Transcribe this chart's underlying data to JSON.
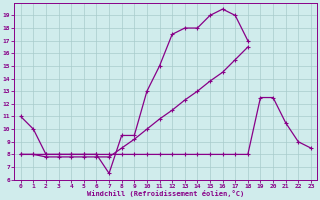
{
  "xlabel": "Windchill (Refroidissement éolien,°C)",
  "line1_x": [
    0,
    1,
    2,
    3,
    4,
    5,
    6,
    7,
    8,
    9,
    10,
    11,
    12,
    13,
    14,
    15,
    16,
    17,
    18
  ],
  "line1_y": [
    11,
    10,
    8,
    8,
    8,
    8,
    8,
    6.5,
    9.5,
    9.5,
    13,
    15,
    17.5,
    18,
    18,
    19,
    19.5,
    19,
    17
  ],
  "line2_x": [
    0,
    1,
    2,
    3,
    4,
    5,
    6,
    7,
    8,
    9,
    10,
    11,
    12,
    13,
    14,
    15,
    16,
    17,
    18
  ],
  "line2_y": [
    8,
    8,
    7.8,
    7.8,
    7.8,
    7.8,
    7.8,
    7.8,
    8.5,
    9.2,
    10,
    10.8,
    11.5,
    12.3,
    13,
    13.8,
    14.5,
    15.5,
    16.5
  ],
  "line3_x": [
    0,
    1,
    2,
    3,
    4,
    5,
    6,
    7,
    8,
    9,
    10,
    11,
    12,
    13,
    14,
    15,
    16,
    17,
    18,
    19,
    20,
    21,
    22,
    23
  ],
  "line3_y": [
    8,
    8,
    8,
    8,
    8,
    8,
    8,
    8,
    8,
    8,
    8,
    8,
    8,
    8,
    8,
    8,
    8,
    8,
    8,
    12.5,
    12.5,
    10.5,
    9,
    8.5
  ],
  "xlim": [
    -0.5,
    23.5
  ],
  "ylim": [
    6,
    20
  ],
  "yticks": [
    6,
    7,
    8,
    9,
    10,
    11,
    12,
    13,
    14,
    15,
    16,
    17,
    18,
    19
  ],
  "xticks": [
    0,
    1,
    2,
    3,
    4,
    5,
    6,
    7,
    8,
    9,
    10,
    11,
    12,
    13,
    14,
    15,
    16,
    17,
    18,
    19,
    20,
    21,
    22,
    23
  ],
  "line_color": "#880088",
  "bg_color": "#d0ecec",
  "grid_color": "#a8cccc"
}
